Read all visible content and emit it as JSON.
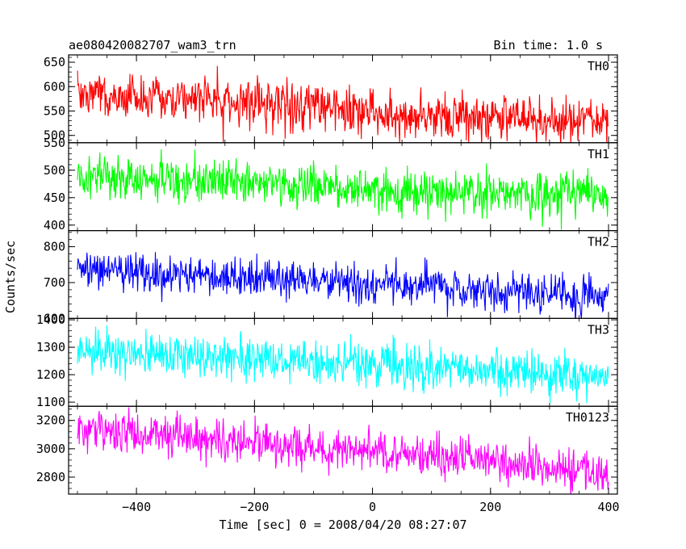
{
  "header": {
    "title": "ae080420082707_wam3_trn",
    "bin_time": "Bin time: 1.0 s"
  },
  "chart_data": {
    "type": "line",
    "title": "ae080420082707_wam3_trn",
    "xlabel": "Time [sec] 0 = 2008/04/20 08:27:07",
    "ylabel": "Counts/sec",
    "xlim": [
      -515,
      415
    ],
    "x_ticks": [
      -400,
      -200,
      0,
      200,
      400
    ],
    "x_tick_labels": [
      "−400",
      "−200",
      "0",
      "200",
      "400"
    ],
    "x_range": [
      -500,
      400
    ],
    "bin_time_s": 1.0,
    "grid": false,
    "panels": [
      {
        "name": "TH0",
        "color": "#ff0000",
        "ylim": [
          485,
          665
        ],
        "y_ticks": [
          500,
          550,
          600,
          650
        ],
        "trend": [
          [
            -500,
            585
          ],
          [
            -300,
            575
          ],
          [
            -100,
            555
          ],
          [
            100,
            540
          ],
          [
            300,
            530
          ],
          [
            400,
            528
          ]
        ],
        "noise_sd": 24
      },
      {
        "name": "TH1",
        "color": "#00ff00",
        "ylim": [
          390,
          550
        ],
        "y_ticks": [
          400,
          450,
          500,
          550
        ],
        "trend": [
          [
            -500,
            488
          ],
          [
            -300,
            482
          ],
          [
            -100,
            470
          ],
          [
            100,
            460
          ],
          [
            300,
            455
          ],
          [
            400,
            455
          ]
        ],
        "noise_sd": 20
      },
      {
        "name": "TH2",
        "color": "#0000ff",
        "ylim": [
          600,
          845
        ],
        "y_ticks": [
          600,
          700,
          800
        ],
        "trend": [
          [
            -500,
            740
          ],
          [
            -300,
            720
          ],
          [
            -100,
            705
          ],
          [
            100,
            690
          ],
          [
            300,
            670
          ],
          [
            400,
            665
          ]
        ],
        "noise_sd": 26
      },
      {
        "name": "TH3",
        "color": "#00ffff",
        "ylim": [
          1085,
          1405
        ],
        "y_ticks": [
          1100,
          1200,
          1300,
          1400
        ],
        "trend": [
          [
            -500,
            1285
          ],
          [
            -300,
            1265
          ],
          [
            -100,
            1245
          ],
          [
            100,
            1225
          ],
          [
            300,
            1200
          ],
          [
            400,
            1195
          ]
        ],
        "noise_sd": 38
      },
      {
        "name": "TH0123",
        "color": "#ff00ff",
        "ylim": [
          2680,
          3300
        ],
        "y_ticks": [
          2800,
          3000,
          3200
        ],
        "trend": [
          [
            -500,
            3150
          ],
          [
            -300,
            3070
          ],
          [
            -100,
            3010
          ],
          [
            100,
            2950
          ],
          [
            300,
            2860
          ],
          [
            400,
            2840
          ]
        ],
        "noise_sd": 70
      }
    ]
  }
}
